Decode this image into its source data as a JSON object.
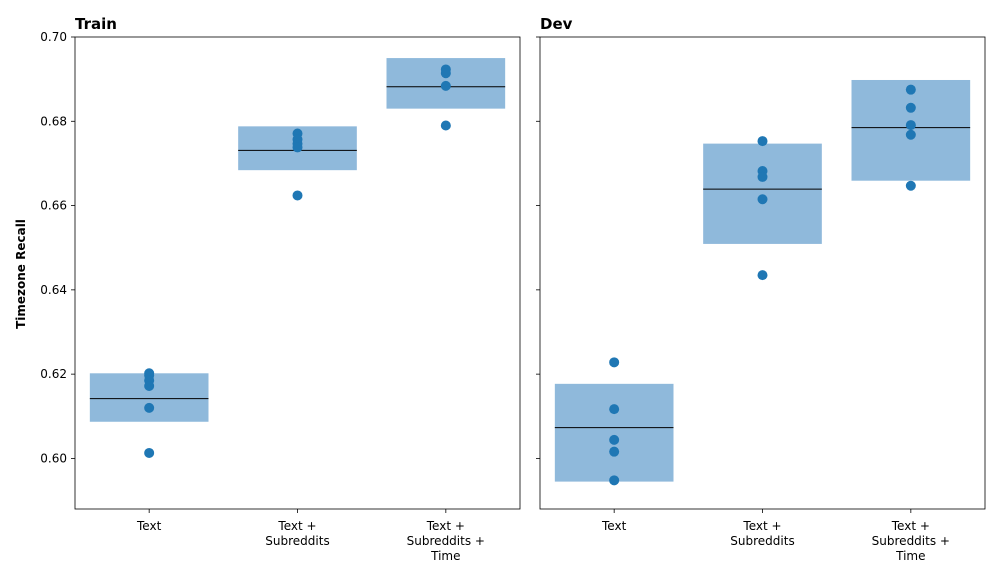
{
  "chart_data": {
    "type": "scatter",
    "ylabel": "Timezone Recall",
    "ylim": [
      0.588,
      0.7
    ],
    "yticks": [
      "0.60",
      "0.62",
      "0.64",
      "0.66",
      "0.68",
      "0.70"
    ],
    "shared_y": true,
    "grid": false,
    "colors": {
      "point": "#1f77b4",
      "box": "#8fb9db",
      "median": "#000000"
    },
    "categories": [
      [
        "Text"
      ],
      [
        "Text +",
        "Subreddits"
      ],
      [
        "Text +",
        "Subreddits +",
        "Time"
      ]
    ],
    "panels": [
      {
        "title": "Train",
        "groups": [
          {
            "points": [
              0.6202,
              0.6197,
              0.6185,
              0.6172,
              0.612,
              0.6013
            ],
            "box_low": 0.6087,
            "box_high": 0.6202,
            "median": 0.6142
          },
          {
            "points": [
              0.6771,
              0.6757,
              0.6747,
              0.6738,
              0.6624
            ],
            "box_low": 0.6684,
            "box_high": 0.6788,
            "median": 0.6731
          },
          {
            "points": [
              0.6923,
              0.6914,
              0.6884,
              0.679
            ],
            "box_low": 0.683,
            "box_high": 0.695,
            "median": 0.6882
          }
        ]
      },
      {
        "title": "Dev",
        "groups": [
          {
            "points": [
              0.6228,
              0.6117,
              0.6044,
              0.6016,
              0.5948
            ],
            "box_low": 0.5945,
            "box_high": 0.6177,
            "median": 0.6073
          },
          {
            "points": [
              0.6753,
              0.6682,
              0.6668,
              0.6615,
              0.6435
            ],
            "box_low": 0.6509,
            "box_high": 0.6747,
            "median": 0.6639
          },
          {
            "points": [
              0.6875,
              0.6832,
              0.6791,
              0.6768,
              0.6647
            ],
            "box_low": 0.6659,
            "box_high": 0.6898,
            "median": 0.6785
          }
        ]
      }
    ]
  }
}
